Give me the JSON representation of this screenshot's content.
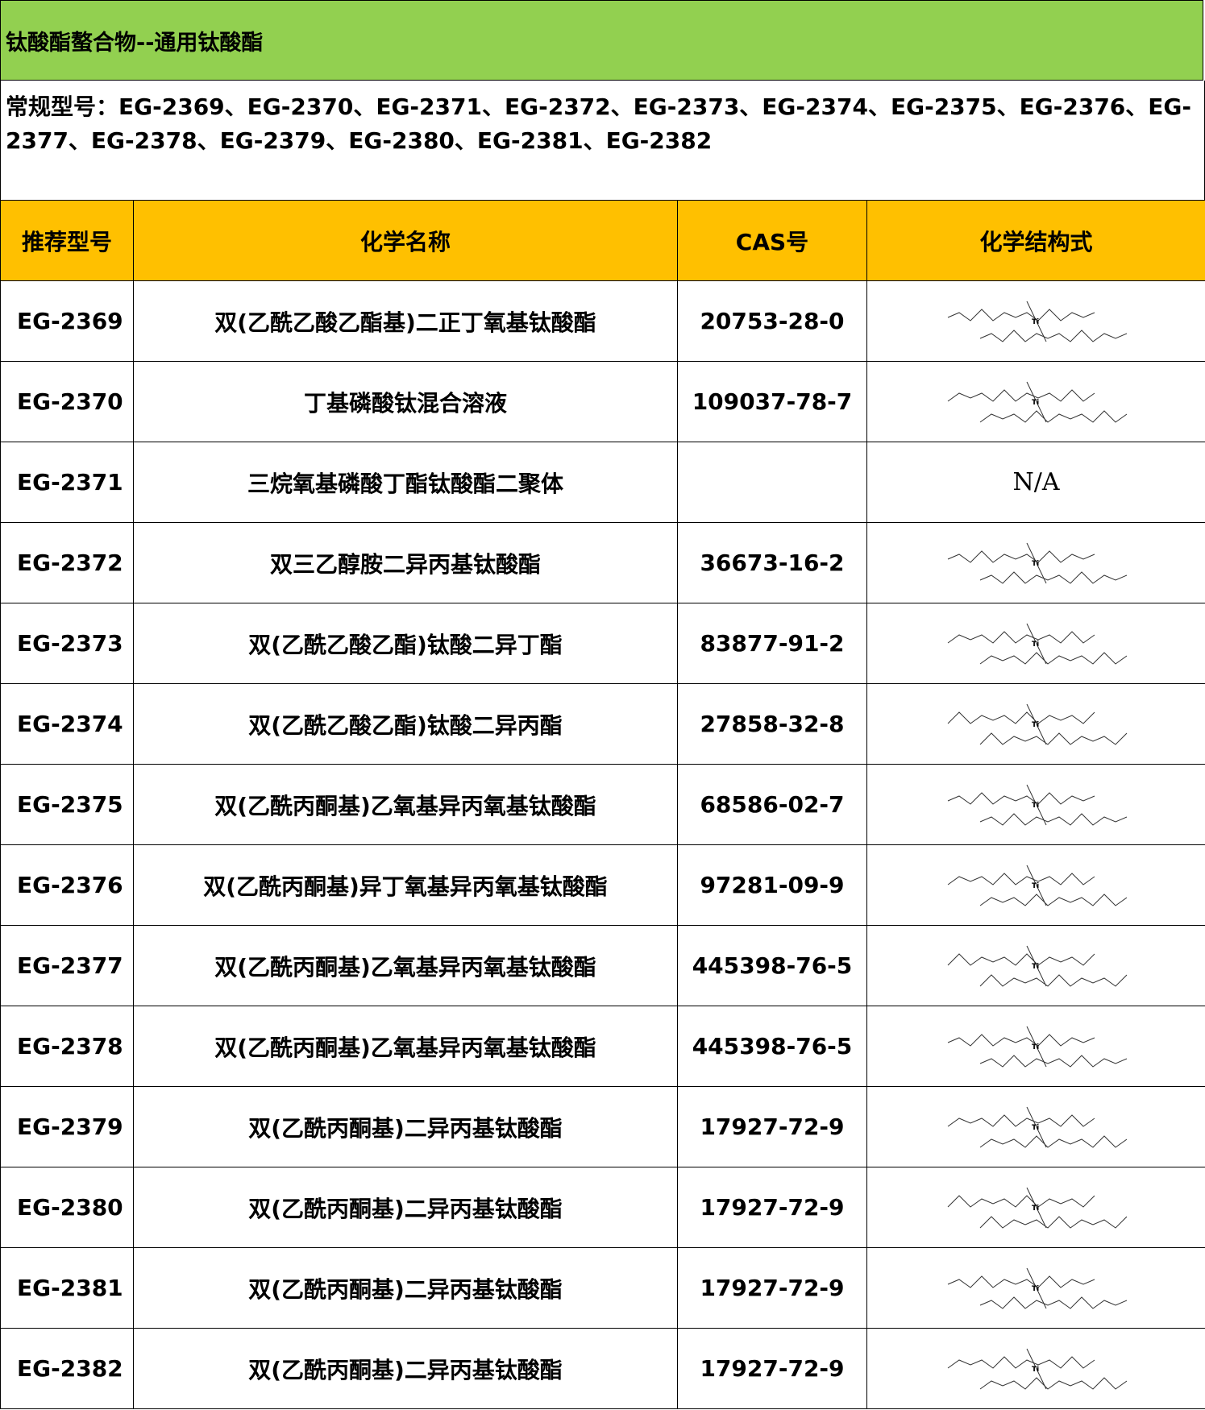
{
  "title": "钛酸酯螯合物--通用钛酸酯",
  "models_line": "常规型号：EG-2369、EG-2370、EG-2371、EG-2372、EG-2373、EG-2374、EG-2375、EG-2376、EG-2377、EG-2378、EG-2379、EG-2380、EG-2381、EG-2382",
  "headers": [
    "推荐型号",
    "化学名称",
    "CAS号",
    "化学结构式"
  ],
  "colors": {
    "title_bg": "#92d050",
    "header_bg": "#ffc000"
  },
  "rows": [
    {
      "model": "EG-2369",
      "name": "双(乙酰乙酸乙酯基)二正丁氧基钛酸酯",
      "cas": "20753-28-0",
      "structure": "structure-image"
    },
    {
      "model": "EG-2370",
      "name": "丁基磷酸钛混合溶液",
      "cas": "109037-78-7",
      "structure": "structure-image"
    },
    {
      "model": "EG-2371",
      "name": "三烷氧基磷酸丁酯钛酸酯二聚体",
      "cas": "",
      "structure": "N/A"
    },
    {
      "model": "EG-2372",
      "name": "双三乙醇胺二异丙基钛酸酯",
      "cas": "36673-16-2",
      "structure": "structure-image"
    },
    {
      "model": "EG-2373",
      "name": "双(乙酰乙酸乙酯)钛酸二异丁酯",
      "cas": "83877-91-2",
      "structure": "structure-image"
    },
    {
      "model": "EG-2374",
      "name": "双(乙酰乙酸乙酯)钛酸二异丙酯",
      "cas": "27858-32-8",
      "structure": "structure-image"
    },
    {
      "model": "EG-2375",
      "name": "双(乙酰丙酮基)乙氧基异丙氧基钛酸酯",
      "cas": "68586-02-7",
      "structure": "structure-image"
    },
    {
      "model": "EG-2376",
      "name": "双(乙酰丙酮基)异丁氧基异丙氧基钛酸酯",
      "cas": "97281-09-9",
      "structure": "structure-image"
    },
    {
      "model": "EG-2377",
      "name": "双(乙酰丙酮基)乙氧基异丙氧基钛酸酯",
      "cas": "445398-76-5",
      "structure": "structure-image"
    },
    {
      "model": "EG-2378",
      "name": "双(乙酰丙酮基)乙氧基异丙氧基钛酸酯",
      "cas": "445398-76-5",
      "structure": "structure-image"
    },
    {
      "model": "EG-2379",
      "name": "双(乙酰丙酮基)二异丙基钛酸酯",
      "cas": "17927-72-9",
      "structure": "structure-image"
    },
    {
      "model": "EG-2380",
      "name": "双(乙酰丙酮基)二异丙基钛酸酯",
      "cas": "17927-72-9",
      "structure": "structure-image"
    },
    {
      "model": "EG-2381",
      "name": "双(乙酰丙酮基)二异丙基钛酸酯",
      "cas": "17927-72-9",
      "structure": "structure-image"
    },
    {
      "model": "EG-2382",
      "name": "双(乙酰丙酮基)二异丙基钛酸酯",
      "cas": "17927-72-9",
      "structure": "structure-image"
    }
  ]
}
